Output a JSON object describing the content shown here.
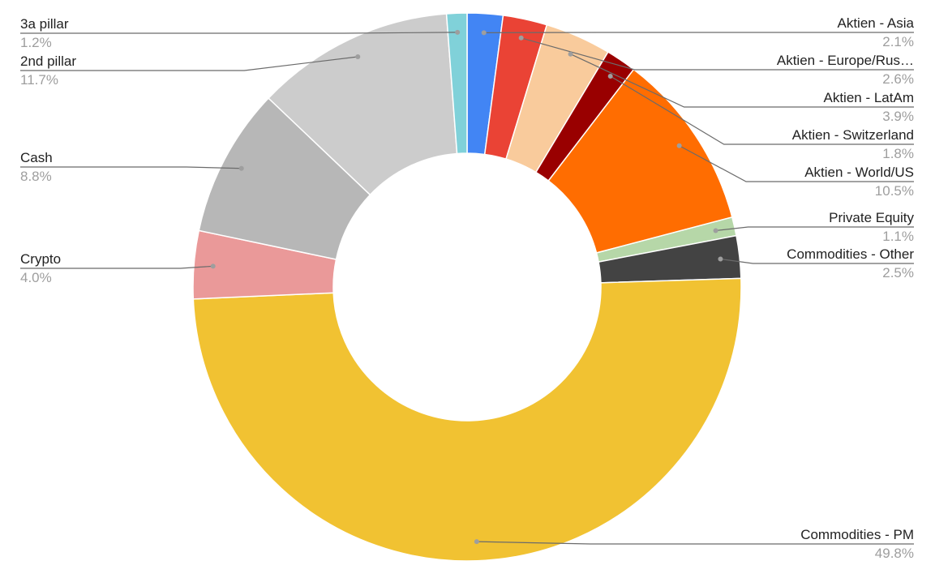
{
  "chart_data": {
    "type": "pie",
    "donut": true,
    "legend": "labels with leader lines",
    "slices": [
      {
        "label": "Aktien - Asia",
        "value": 2.1,
        "display": "2.1%",
        "color": "#4285f4",
        "side": "right"
      },
      {
        "label": "Aktien - Europe/Rus…",
        "value": 2.6,
        "display": "2.6%",
        "color": "#ea4335",
        "side": "right"
      },
      {
        "label": "Aktien - LatAm",
        "value": 3.9,
        "display": "3.9%",
        "color": "#f9cb9c",
        "side": "right"
      },
      {
        "label": "Aktien - Switzerland",
        "value": 1.8,
        "display": "1.8%",
        "color": "#990000",
        "side": "right"
      },
      {
        "label": "Aktien - World/US",
        "value": 10.5,
        "display": "10.5%",
        "color": "#ff6d01",
        "side": "right"
      },
      {
        "label": "Private Equity",
        "value": 1.1,
        "display": "1.1%",
        "color": "#b6d7a8",
        "side": "right"
      },
      {
        "label": "Commodities - Other",
        "value": 2.5,
        "display": "2.5%",
        "color": "#434343",
        "side": "right"
      },
      {
        "label": "Commodities - PM",
        "value": 49.8,
        "display": "49.8%",
        "color": "#f1c232",
        "side": "right"
      },
      {
        "label": "Crypto",
        "value": 4.0,
        "display": "4.0%",
        "color": "#ea9999",
        "side": "left"
      },
      {
        "label": "Cash",
        "value": 8.8,
        "display": "8.8%",
        "color": "#b7b7b7",
        "side": "left"
      },
      {
        "label": "2nd pillar",
        "value": 11.7,
        "display": "11.7%",
        "color": "#cccccc",
        "side": "left"
      },
      {
        "label": "3a pillar",
        "value": 1.2,
        "display": "1.2%",
        "color": "#80d1d9",
        "side": "left"
      }
    ]
  }
}
